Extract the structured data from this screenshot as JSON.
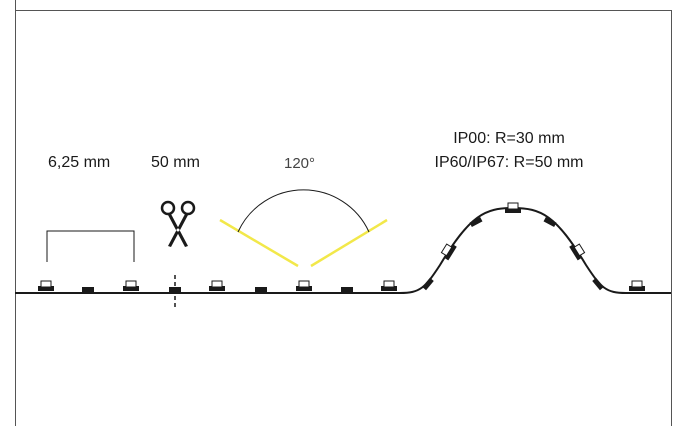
{
  "labels": {
    "spacing": "6,25 mm",
    "cut_length": "50 mm",
    "beam_angle": "120°",
    "bend_radius_ip00": "IP00: R=30 mm",
    "bend_radius_ip67": "IP60/IP67: R=50 mm"
  },
  "icons": {
    "cut": "scissors-icon"
  },
  "colors": {
    "line": "#1a1a1a",
    "beam": "#f2e84a",
    "frame": "#555555"
  }
}
